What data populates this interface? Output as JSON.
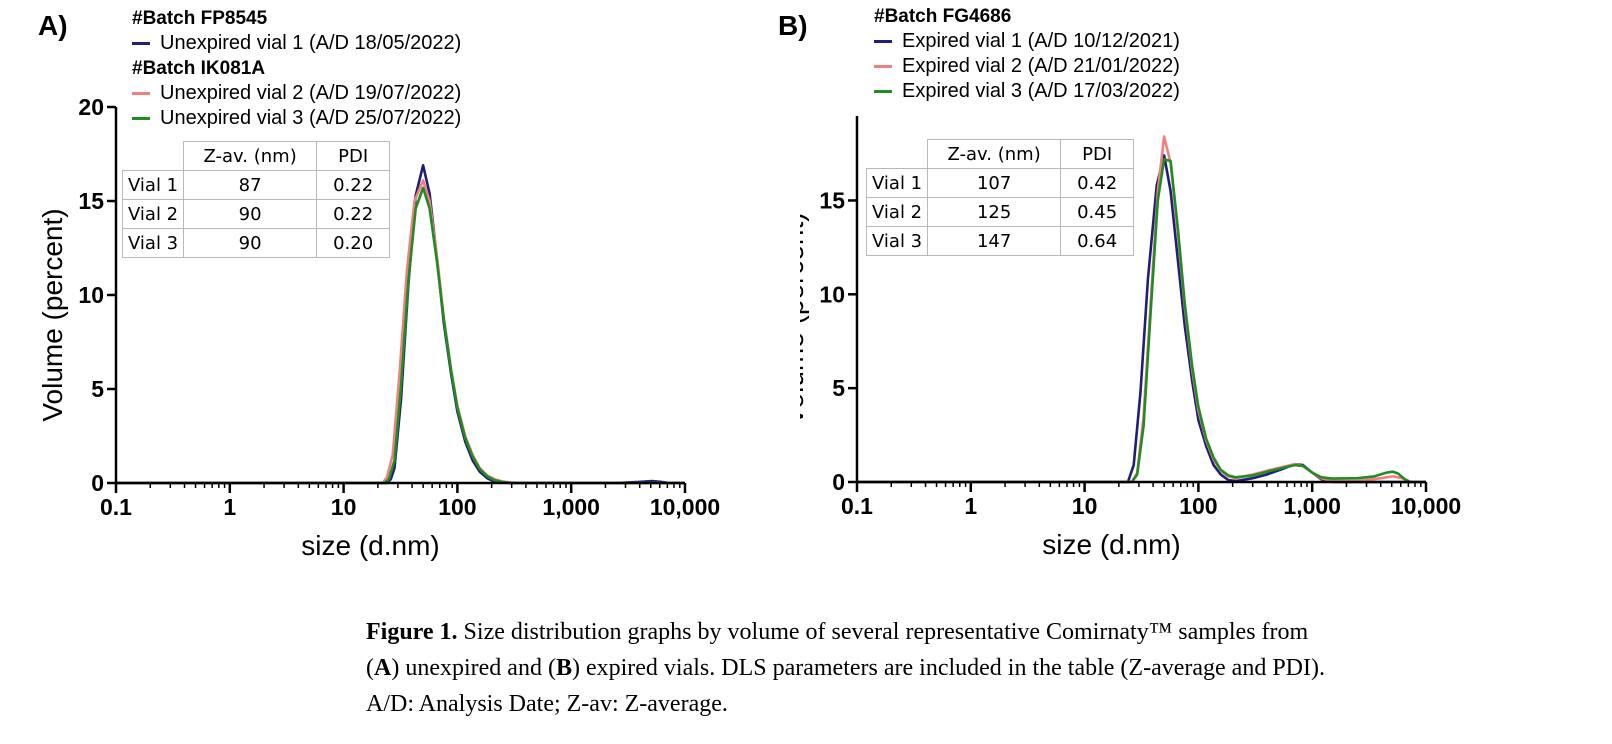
{
  "panels": [
    {
      "letter": "A)",
      "legend": [
        {
          "type": "batch",
          "text": "#Batch FP8545"
        },
        {
          "type": "series",
          "series": 0,
          "text": "Unexpired vial 1 (A/D 18/05/2022)"
        },
        {
          "type": "batch",
          "text": "#Batch IK081A"
        },
        {
          "type": "series",
          "series": 1,
          "text": "Unexpired vial 2 (A/D 19/07/2022)"
        },
        {
          "type": "series",
          "series": 2,
          "text": "Unexpired vial 3 (A/D 25/07/2022)"
        }
      ],
      "table": {
        "headers": [
          "",
          "Z-av. (nm)",
          "PDI"
        ],
        "rows": [
          [
            "Vial 1",
            "87",
            "0.22"
          ],
          [
            "Vial 2",
            "90",
            "0.22"
          ],
          [
            "Vial 3",
            "90",
            "0.20"
          ]
        ]
      }
    },
    {
      "letter": "B)",
      "legend": [
        {
          "type": "batch",
          "text": "#Batch FG4686"
        },
        {
          "type": "series",
          "series": 0,
          "text": "Expired vial 1 (A/D 10/12/2021)"
        },
        {
          "type": "series",
          "series": 1,
          "text": "Expired vial 2 (A/D 21/01/2022)"
        },
        {
          "type": "series",
          "series": 2,
          "text": "Expired vial 3 (A/D 17/03/2022)"
        }
      ],
      "table": {
        "headers": [
          "",
          "Z-av. (nm)",
          "PDI"
        ],
        "rows": [
          [
            "Vial 1",
            "107",
            "0.42"
          ],
          [
            "Vial 2",
            "125",
            "0.45"
          ],
          [
            "Vial 3",
            "147",
            "0.64"
          ]
        ]
      }
    }
  ],
  "chart_data": [
    {
      "type": "line",
      "xscale": "log",
      "xlabel": "size (d.nm)",
      "ylabel": "Volume (percent)",
      "xlim": [
        0.1,
        10000
      ],
      "ylim": [
        0,
        20
      ],
      "xticks": [
        0.1,
        1,
        10,
        100,
        1000,
        10000
      ],
      "xtick_labels": [
        "0.1",
        "1",
        "10",
        "100",
        "1,000",
        "10,000"
      ],
      "yticks": [
        0,
        5,
        10,
        15,
        20
      ],
      "ytick_labels": [
        "0",
        "5",
        "10",
        "15",
        "20"
      ],
      "grid": false,
      "series": [
        {
          "name": "Unexpired vial 1 (A/D 18/05/2022)",
          "color": "#1f1f7a",
          "points": [
            [
              0.1,
              0
            ],
            [
              24,
              0
            ],
            [
              26,
              0.2
            ],
            [
              28,
              0.8
            ],
            [
              32,
              4.5
            ],
            [
              37,
              10.5
            ],
            [
              43,
              15.3
            ],
            [
              50,
              16.9
            ],
            [
              57,
              15.4
            ],
            [
              66,
              12.0
            ],
            [
              76,
              8.5
            ],
            [
              88,
              5.8
            ],
            [
              100,
              3.8
            ],
            [
              117,
              2.2
            ],
            [
              136,
              1.2
            ],
            [
              157,
              0.6
            ],
            [
              183,
              0.25
            ],
            [
              212,
              0.08
            ],
            [
              250,
              0.02
            ],
            [
              300,
              0
            ],
            [
              2500,
              0
            ],
            [
              4000,
              0.06
            ],
            [
              5100,
              0.1
            ],
            [
              6200,
              0.06
            ],
            [
              7300,
              0
            ],
            [
              10000,
              0
            ]
          ]
        },
        {
          "name": "Unexpired vial 2 (A/D 19/07/2022)",
          "color": "#f08080",
          "points": [
            [
              0.1,
              0
            ],
            [
              22,
              0
            ],
            [
              24,
              0.3
            ],
            [
              27,
              1.5
            ],
            [
              31,
              5.8
            ],
            [
              36,
              11.3
            ],
            [
              42,
              15.0
            ],
            [
              50,
              16.1
            ],
            [
              57,
              15.0
            ],
            [
              66,
              12.1
            ],
            [
              76,
              8.8
            ],
            [
              88,
              6.0
            ],
            [
              100,
              4.1
            ],
            [
              117,
              2.5
            ],
            [
              136,
              1.5
            ],
            [
              157,
              0.8
            ],
            [
              183,
              0.4
            ],
            [
              212,
              0.2
            ],
            [
              250,
              0.08
            ],
            [
              300,
              0.02
            ],
            [
              360,
              0
            ],
            [
              10000,
              0
            ]
          ]
        },
        {
          "name": "Unexpired vial 3 (A/D 25/07/2022)",
          "color": "#228b22",
          "points": [
            [
              0.1,
              0
            ],
            [
              23,
              0
            ],
            [
              25,
              0.2
            ],
            [
              28,
              1.2
            ],
            [
              32,
              5.2
            ],
            [
              37,
              10.7
            ],
            [
              43,
              14.6
            ],
            [
              50,
              15.7
            ],
            [
              57,
              14.6
            ],
            [
              66,
              11.8
            ],
            [
              76,
              8.7
            ],
            [
              88,
              6.0
            ],
            [
              100,
              4.0
            ],
            [
              117,
              2.4
            ],
            [
              136,
              1.4
            ],
            [
              157,
              0.75
            ],
            [
              183,
              0.35
            ],
            [
              212,
              0.15
            ],
            [
              250,
              0.05
            ],
            [
              300,
              0
            ],
            [
              10000,
              0
            ]
          ]
        }
      ]
    },
    {
      "type": "line",
      "xscale": "log",
      "xlabel": "size (d.nm)",
      "ylabel": "Volume (percent)",
      "xlim": [
        0.1,
        10000
      ],
      "ylim": [
        0,
        19.5
      ],
      "xticks": [
        0.1,
        1,
        10,
        100,
        1000,
        10000
      ],
      "xtick_labels": [
        "0.1",
        "1",
        "10",
        "100",
        "1,000",
        "10,000"
      ],
      "yticks": [
        0,
        5,
        10,
        15
      ],
      "ytick_labels": [
        "0",
        "5",
        "10",
        "15"
      ],
      "grid": false,
      "series": [
        {
          "name": "Expired vial 1 (A/D 10/12/2021)",
          "color": "#1f1f7a",
          "points": [
            [
              0.1,
              0
            ],
            [
              24,
              0
            ],
            [
              27,
              0.9
            ],
            [
              31,
              4.8
            ],
            [
              36,
              10.8
            ],
            [
              43,
              15.8
            ],
            [
              50,
              17.4
            ],
            [
              57,
              15.5
            ],
            [
              66,
              11.8
            ],
            [
              76,
              8.3
            ],
            [
              88,
              5.4
            ],
            [
              100,
              3.3
            ],
            [
              117,
              1.9
            ],
            [
              136,
              0.9
            ],
            [
              157,
              0.4
            ],
            [
              183,
              0.1
            ],
            [
              212,
              0.05
            ],
            [
              300,
              0.2
            ],
            [
              400,
              0.4
            ],
            [
              550,
              0.7
            ],
            [
              700,
              0.95
            ],
            [
              830,
              0.9
            ],
            [
              1000,
              0.5
            ],
            [
              1200,
              0.15
            ],
            [
              1500,
              0
            ],
            [
              10000,
              0
            ]
          ]
        },
        {
          "name": "Expired vial 2 (A/D 21/01/2022)",
          "color": "#f08080",
          "points": [
            [
              0.1,
              0
            ],
            [
              26,
              0
            ],
            [
              29,
              0.5
            ],
            [
              33,
              3.5
            ],
            [
              38,
              9.5
            ],
            [
              44,
              15.5
            ],
            [
              50,
              18.4
            ],
            [
              57,
              17.0
            ],
            [
              66,
              13.2
            ],
            [
              76,
              9.3
            ],
            [
              88,
              6.0
            ],
            [
              100,
              3.8
            ],
            [
              117,
              2.2
            ],
            [
              136,
              1.2
            ],
            [
              157,
              0.6
            ],
            [
              183,
              0.3
            ],
            [
              212,
              0.2
            ],
            [
              300,
              0.4
            ],
            [
              400,
              0.6
            ],
            [
              550,
              0.8
            ],
            [
              700,
              0.95
            ],
            [
              830,
              0.85
            ],
            [
              1000,
              0.5
            ],
            [
              1200,
              0.2
            ],
            [
              1500,
              0.05
            ],
            [
              2500,
              0.05
            ],
            [
              4000,
              0.2
            ],
            [
              5100,
              0.3
            ],
            [
              6200,
              0.2
            ],
            [
              7300,
              0
            ],
            [
              10000,
              0
            ]
          ]
        },
        {
          "name": "Expired vial 3 (A/D 17/03/2022)",
          "color": "#228b22",
          "points": [
            [
              0.1,
              0
            ],
            [
              26,
              0
            ],
            [
              29,
              0.4
            ],
            [
              33,
              3.0
            ],
            [
              38,
              9.0
            ],
            [
              44,
              15.0
            ],
            [
              50,
              17.2
            ],
            [
              57,
              17.1
            ],
            [
              66,
              13.5
            ],
            [
              76,
              9.5
            ],
            [
              88,
              6.2
            ],
            [
              100,
              4.0
            ],
            [
              117,
              2.3
            ],
            [
              136,
              1.3
            ],
            [
              157,
              0.65
            ],
            [
              183,
              0.35
            ],
            [
              212,
              0.25
            ],
            [
              300,
              0.35
            ],
            [
              400,
              0.55
            ],
            [
              550,
              0.75
            ],
            [
              700,
              0.9
            ],
            [
              830,
              0.85
            ],
            [
              1000,
              0.5
            ],
            [
              1200,
              0.25
            ],
            [
              1500,
              0.18
            ],
            [
              2500,
              0.2
            ],
            [
              3500,
              0.3
            ],
            [
              4500,
              0.5
            ],
            [
              5100,
              0.55
            ],
            [
              5700,
              0.45
            ],
            [
              6500,
              0.15
            ],
            [
              7300,
              0
            ],
            [
              10000,
              0
            ]
          ]
        }
      ]
    }
  ],
  "caption": {
    "label": "Figure 1.",
    "line1_rest": " Size distribution graphs by volume of several representative Comirnaty™ samples from",
    "line2_p1": "(",
    "line2_a": "A",
    "line2_p2": ") unexpired and (",
    "line2_b": "B",
    "line2_p3": ") expired vials. DLS parameters are included in the table (Z-average and PDI).",
    "line3": "A/D: Analysis Date; Z-av: Z-average."
  }
}
